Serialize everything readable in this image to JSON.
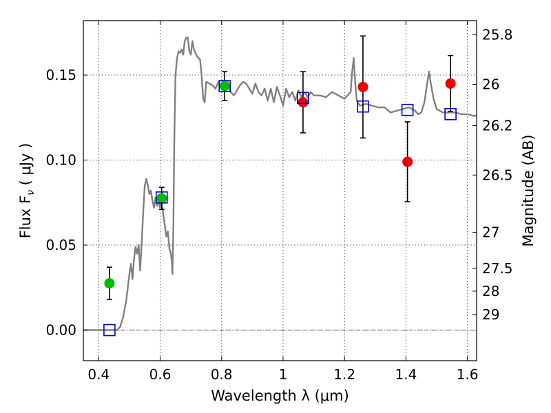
{
  "chart_data": {
    "type": "scatter",
    "title": "",
    "xlabel": "Wavelength  λ (μm)",
    "ylabel": "Flux  F",
    "ylabel_sub": "ν",
    "ylabel_suffix": " ( μJy )",
    "y2label": "Magnitude (AB)",
    "xlim": [
      0.35,
      1.63
    ],
    "ylim": [
      -0.018,
      0.182
    ],
    "xticks": [
      0.4,
      0.6,
      0.8,
      1.0,
      1.2,
      1.4,
      1.6
    ],
    "xtick_labels": [
      "0.4",
      "0.6",
      "0.8",
      "1",
      "1.2",
      "1.4",
      "1.6"
    ],
    "yticks": [
      0.0,
      0.05,
      0.1,
      0.15
    ],
    "ytick_labels": [
      "0.00",
      "0.05",
      "0.10",
      "0.15"
    ],
    "y2ticks": [
      25.8,
      26,
      26.2,
      26.5,
      27,
      27.5,
      28,
      29
    ],
    "y2tick_labels": [
      "25.8",
      "26",
      "26.2",
      "26.5",
      "27",
      "27.5",
      "28",
      "29"
    ],
    "grid": true,
    "zero_line": 0.0,
    "colors": {
      "model": "#808080",
      "green": "#00bb00",
      "red": "#ee0000",
      "blue_square": "#0000cc",
      "errorbar": "#000000",
      "grid": "#555555"
    },
    "series": [
      {
        "marker": "model-line",
        "points": [
          [
            0.35,
            0.0
          ],
          [
            0.46,
            0.0
          ],
          [
            0.47,
            0.002
          ],
          [
            0.48,
            0.008
          ],
          [
            0.49,
            0.018
          ],
          [
            0.5,
            0.033
          ],
          [
            0.505,
            0.039
          ],
          [
            0.51,
            0.03
          ],
          [
            0.515,
            0.042
          ],
          [
            0.52,
            0.049
          ],
          [
            0.525,
            0.045
          ],
          [
            0.53,
            0.05
          ],
          [
            0.535,
            0.035
          ],
          [
            0.54,
            0.052
          ],
          [
            0.545,
            0.07
          ],
          [
            0.55,
            0.085
          ],
          [
            0.555,
            0.089
          ],
          [
            0.56,
            0.085
          ],
          [
            0.565,
            0.08
          ],
          [
            0.57,
            0.082
          ],
          [
            0.575,
            0.076
          ],
          [
            0.58,
            0.072
          ],
          [
            0.585,
            0.078
          ],
          [
            0.59,
            0.073
          ],
          [
            0.595,
            0.076
          ],
          [
            0.6,
            0.072
          ],
          [
            0.605,
            0.075
          ],
          [
            0.61,
            0.068
          ],
          [
            0.615,
            0.062
          ],
          [
            0.62,
            0.055
          ],
          [
            0.625,
            0.058
          ],
          [
            0.63,
            0.048
          ],
          [
            0.635,
            0.045
          ],
          [
            0.638,
            0.04
          ],
          [
            0.64,
            0.033
          ],
          [
            0.643,
            0.06
          ],
          [
            0.646,
            0.11
          ],
          [
            0.65,
            0.15
          ],
          [
            0.655,
            0.16
          ],
          [
            0.66,
            0.164
          ],
          [
            0.665,
            0.163
          ],
          [
            0.67,
            0.165
          ],
          [
            0.675,
            0.162
          ],
          [
            0.68,
            0.17
          ],
          [
            0.685,
            0.172
          ],
          [
            0.69,
            0.172
          ],
          [
            0.695,
            0.164
          ],
          [
            0.7,
            0.162
          ],
          [
            0.705,
            0.17
          ],
          [
            0.71,
            0.165
          ],
          [
            0.72,
            0.161
          ],
          [
            0.73,
            0.159
          ],
          [
            0.735,
            0.15
          ],
          [
            0.74,
            0.136
          ],
          [
            0.745,
            0.134
          ],
          [
            0.75,
            0.146
          ],
          [
            0.76,
            0.145
          ],
          [
            0.77,
            0.144
          ],
          [
            0.78,
            0.142
          ],
          [
            0.79,
            0.146
          ],
          [
            0.8,
            0.147
          ],
          [
            0.81,
            0.145
          ],
          [
            0.82,
            0.146
          ],
          [
            0.83,
            0.14
          ],
          [
            0.84,
            0.138
          ],
          [
            0.85,
            0.141
          ],
          [
            0.86,
            0.144
          ],
          [
            0.87,
            0.146
          ],
          [
            0.88,
            0.145
          ],
          [
            0.89,
            0.142
          ],
          [
            0.9,
            0.139
          ],
          [
            0.91,
            0.145
          ],
          [
            0.92,
            0.14
          ],
          [
            0.93,
            0.138
          ],
          [
            0.94,
            0.142
          ],
          [
            0.95,
            0.135
          ],
          [
            0.96,
            0.142
          ],
          [
            0.97,
            0.134
          ],
          [
            0.98,
            0.143
          ],
          [
            0.99,
            0.138
          ],
          [
            1.0,
            0.132
          ],
          [
            1.01,
            0.142
          ],
          [
            1.02,
            0.137
          ],
          [
            1.03,
            0.14
          ],
          [
            1.04,
            0.135
          ],
          [
            1.05,
            0.141
          ],
          [
            1.06,
            0.137
          ],
          [
            1.07,
            0.14
          ],
          [
            1.08,
            0.137
          ],
          [
            1.09,
            0.14
          ],
          [
            1.1,
            0.138
          ],
          [
            1.12,
            0.138
          ],
          [
            1.14,
            0.137
          ],
          [
            1.16,
            0.14
          ],
          [
            1.18,
            0.138
          ],
          [
            1.2,
            0.136
          ],
          [
            1.21,
            0.138
          ],
          [
            1.22,
            0.14
          ],
          [
            1.225,
            0.152
          ],
          [
            1.23,
            0.16
          ],
          [
            1.235,
            0.145
          ],
          [
            1.24,
            0.135
          ],
          [
            1.25,
            0.132
          ],
          [
            1.27,
            0.133
          ],
          [
            1.29,
            0.132
          ],
          [
            1.31,
            0.131
          ],
          [
            1.33,
            0.131
          ],
          [
            1.35,
            0.128
          ],
          [
            1.37,
            0.129
          ],
          [
            1.39,
            0.13
          ],
          [
            1.41,
            0.131
          ],
          [
            1.43,
            0.129
          ],
          [
            1.44,
            0.127
          ],
          [
            1.45,
            0.128
          ],
          [
            1.46,
            0.134
          ],
          [
            1.47,
            0.146
          ],
          [
            1.475,
            0.152
          ],
          [
            1.48,
            0.146
          ],
          [
            1.49,
            0.136
          ],
          [
            1.5,
            0.13
          ],
          [
            1.52,
            0.128
          ],
          [
            1.54,
            0.128
          ],
          [
            1.56,
            0.128
          ],
          [
            1.58,
            0.127
          ],
          [
            1.6,
            0.127
          ],
          [
            1.62,
            0.126
          ],
          [
            1.63,
            0.126
          ]
        ]
      },
      {
        "marker": "green-circle",
        "points": [
          {
            "x": 0.435,
            "y": 0.0275,
            "yerr": 0.0095
          },
          {
            "x": 0.605,
            "y": 0.0775,
            "yerr": 0.0065
          },
          {
            "x": 0.81,
            "y": 0.1435,
            "yerr": 0.0085
          }
        ]
      },
      {
        "marker": "red-circle",
        "points": [
          {
            "x": 1.065,
            "y": 0.134,
            "yerr": 0.018
          },
          {
            "x": 1.26,
            "y": 0.143,
            "yerr": 0.03
          },
          {
            "x": 1.405,
            "y": 0.099,
            "yerr": 0.0235
          },
          {
            "x": 1.545,
            "y": 0.145,
            "yerr": 0.0165
          }
        ]
      },
      {
        "marker": "blue-square",
        "points": [
          {
            "x": 0.435,
            "y": 0.0
          },
          {
            "x": 0.605,
            "y": 0.078
          },
          {
            "x": 0.81,
            "y": 0.1435
          },
          {
            "x": 1.065,
            "y": 0.1365
          },
          {
            "x": 1.26,
            "y": 0.1315
          },
          {
            "x": 1.405,
            "y": 0.1295
          },
          {
            "x": 1.545,
            "y": 0.127
          }
        ]
      }
    ]
  }
}
